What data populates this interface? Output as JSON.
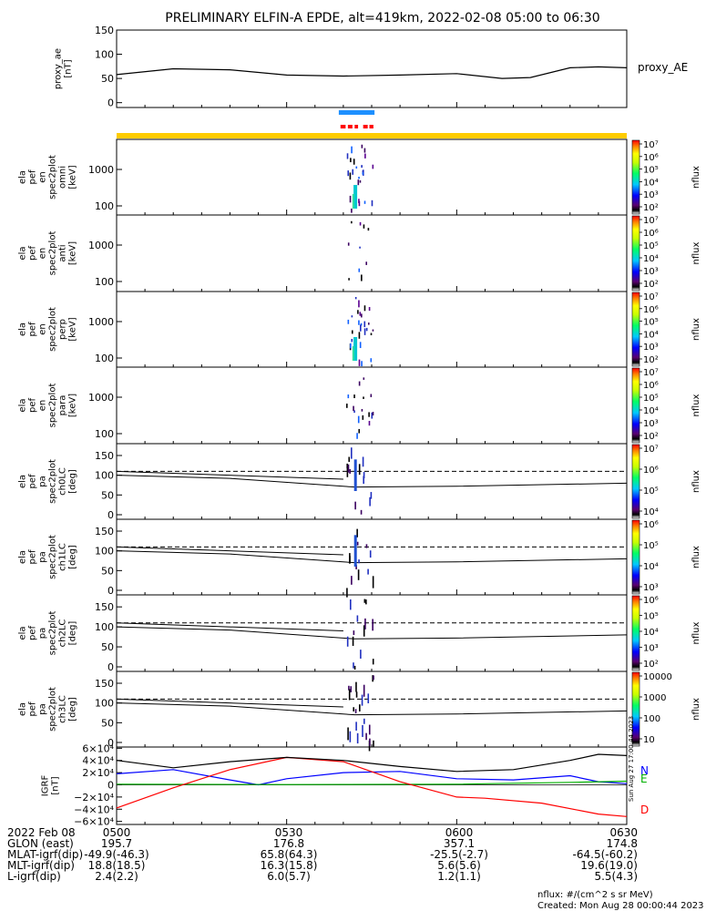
{
  "title": "PRELIMINARY ELFIN-A EPDE, alt=419km, 2022-02-08 05:00 to 06:30",
  "stamp": "Sun Aug 27 17:00:44 2023",
  "colors": {
    "fill_bar": "#ffcc00",
    "sci_bar": "#1e90ff",
    "sci_dots": "#ff0000",
    "grf_n": "#0000ff",
    "grf_e": "#00b000",
    "grf_d": "#ff0000"
  },
  "chart_data": [
    {
      "type": "line",
      "panel": "proxy_ae",
      "ylabel": "proxy_ae [nT]",
      "ylim": [
        -10,
        150
      ],
      "yticks": [
        "150",
        "100",
        "50",
        "0"
      ],
      "legend": "proxy_AE",
      "x_unit": "minutes since 05:00",
      "x": [
        0,
        10,
        20,
        30,
        40,
        50,
        60,
        68,
        73,
        80,
        85,
        90
      ],
      "series": [
        {
          "name": "proxy_AE",
          "values": [
            58,
            70,
            68,
            57,
            55,
            57,
            60,
            50,
            52,
            72,
            74,
            72
          ]
        }
      ]
    },
    {
      "type": "heatmap",
      "panel": "spec2plot_omni",
      "ylabel": "ela pef en spec2plot omni [keV]",
      "yscale": "log",
      "yticks": [
        "1000",
        "100"
      ],
      "colorbar": {
        "label": "nflux",
        "ticks": [
          "10⁷",
          "10⁶",
          "10⁵",
          "10⁴",
          "10³",
          "10²"
        ]
      }
    },
    {
      "type": "heatmap",
      "panel": "spec2plot_anti",
      "ylabel": "ela pef en spec2plot anti [keV]",
      "yscale": "log",
      "yticks": [
        "1000",
        "100"
      ],
      "colorbar": {
        "label": "nflux",
        "ticks": [
          "10⁷",
          "10⁶",
          "10⁵",
          "10⁴",
          "10³",
          "10²"
        ]
      }
    },
    {
      "type": "heatmap",
      "panel": "spec2plot_perp",
      "ylabel": "ela pef en spec2plot perp [keV]",
      "yscale": "log",
      "yticks": [
        "1000",
        "100"
      ],
      "colorbar": {
        "label": "nflux",
        "ticks": [
          "10⁷",
          "10⁶",
          "10⁵",
          "10⁴",
          "10³",
          "10²"
        ]
      }
    },
    {
      "type": "heatmap",
      "panel": "spec2plot_para",
      "ylabel": "ela pef en spec2plot para [keV]",
      "yscale": "log",
      "yticks": [
        "1000",
        "100"
      ],
      "colorbar": {
        "label": "nflux",
        "ticks": [
          "10⁷",
          "10⁶",
          "10⁵",
          "10⁴",
          "10³",
          "10²"
        ]
      }
    },
    {
      "type": "heatmap",
      "panel": "ch0LC",
      "ylabel": "ela pef pa spec2plot ch0LC [deg]",
      "yticks": [
        "150",
        "100",
        "50",
        "0"
      ],
      "colorbar": {
        "label": "nflux",
        "ticks": [
          "10⁷",
          "10⁶",
          "10⁵",
          "10⁴"
        ]
      }
    },
    {
      "type": "heatmap",
      "panel": "ch1LC",
      "ylabel": "ela pef pa spec2plot ch1LC [deg]",
      "yticks": [
        "150",
        "100",
        "50",
        "0"
      ],
      "colorbar": {
        "label": "nflux",
        "ticks": [
          "10⁶",
          "10⁵",
          "10⁴",
          "10³"
        ]
      }
    },
    {
      "type": "heatmap",
      "panel": "ch2LC",
      "ylabel": "ela pef pa spec2plot ch2LC [deg]",
      "yticks": [
        "150",
        "100",
        "50",
        "0"
      ],
      "colorbar": {
        "label": "nflux",
        "ticks": [
          "10⁶",
          "10⁵",
          "10⁴",
          "10³",
          "10²"
        ]
      }
    },
    {
      "type": "heatmap",
      "panel": "ch3LC",
      "ylabel": "ela pef pa spec2plot ch3LC [deg]",
      "yticks": [
        "150",
        "100",
        "50",
        "0"
      ],
      "colorbar": {
        "label": "nflux",
        "ticks": [
          "10000",
          "1000",
          "100",
          "10"
        ]
      }
    },
    {
      "type": "line",
      "panel": "IGRF",
      "ylabel": "IGRF [nT]",
      "ylim": [
        -65000,
        62000
      ],
      "yticks": [
        "6×10⁴",
        "4×10⁴",
        "2×10⁴",
        "0",
        "−2×10⁴",
        "−4×10⁴",
        "−6×10⁴"
      ],
      "x_unit": "minutes since 05:00",
      "series": [
        {
          "name": "N",
          "color": "#0000ff",
          "x": [
            0,
            10,
            20,
            25,
            30,
            40,
            50,
            60,
            70,
            80,
            85,
            90
          ],
          "values": [
            18000,
            25000,
            8000,
            0,
            10000,
            20000,
            22000,
            10000,
            8000,
            15000,
            5000,
            2000
          ]
        },
        {
          "name": "E",
          "color": "#00b000",
          "x": [
            0,
            30,
            60,
            80,
            90
          ],
          "values": [
            1000,
            500,
            1000,
            4000,
            6000
          ]
        },
        {
          "name": "D",
          "color": "#ff0000",
          "x": [
            0,
            10,
            20,
            30,
            40,
            50,
            60,
            65,
            75,
            85,
            90
          ],
          "values": [
            -38000,
            -5000,
            25000,
            45000,
            38000,
            5000,
            -20000,
            -22000,
            -30000,
            -48000,
            -52000
          ]
        },
        {
          "name": "total",
          "color": "#000000",
          "x": [
            0,
            10,
            20,
            30,
            40,
            50,
            60,
            70,
            80,
            85,
            90
          ],
          "values": [
            40000,
            28000,
            38000,
            45000,
            40000,
            30000,
            22000,
            25000,
            40000,
            50000,
            48000
          ]
        }
      ]
    }
  ],
  "ephemeris": {
    "rows": [
      {
        "label": "2022 Feb 08",
        "values": [
          "0500",
          "0530",
          "0600",
          "0630"
        ]
      },
      {
        "label": "GLON (east)",
        "values": [
          "195.7",
          "176.8",
          "357.1",
          "174.8"
        ]
      },
      {
        "label": "MLAT-igrf(dip)",
        "values": [
          "-49.9(-46.3)",
          "65.8(64.3)",
          "-25.5(-2.7)",
          "-64.5(-60.2)"
        ]
      },
      {
        "label": "MLT-igrf(dip)",
        "values": [
          "18.8(18.5)",
          "16.3(15.8)",
          "5.6(5.6)",
          "19.6(19.0)"
        ]
      },
      {
        "label": "L-igrf(dip)",
        "values": [
          "2.4(2.2)",
          "6.0(5.7)",
          "1.2(1.1)",
          "5.5(4.3)"
        ]
      }
    ]
  },
  "footer": {
    "units": "nflux: #/(cm^2 s sr MeV)",
    "created": "Created: Mon Aug 28 00:00:44 2023"
  }
}
